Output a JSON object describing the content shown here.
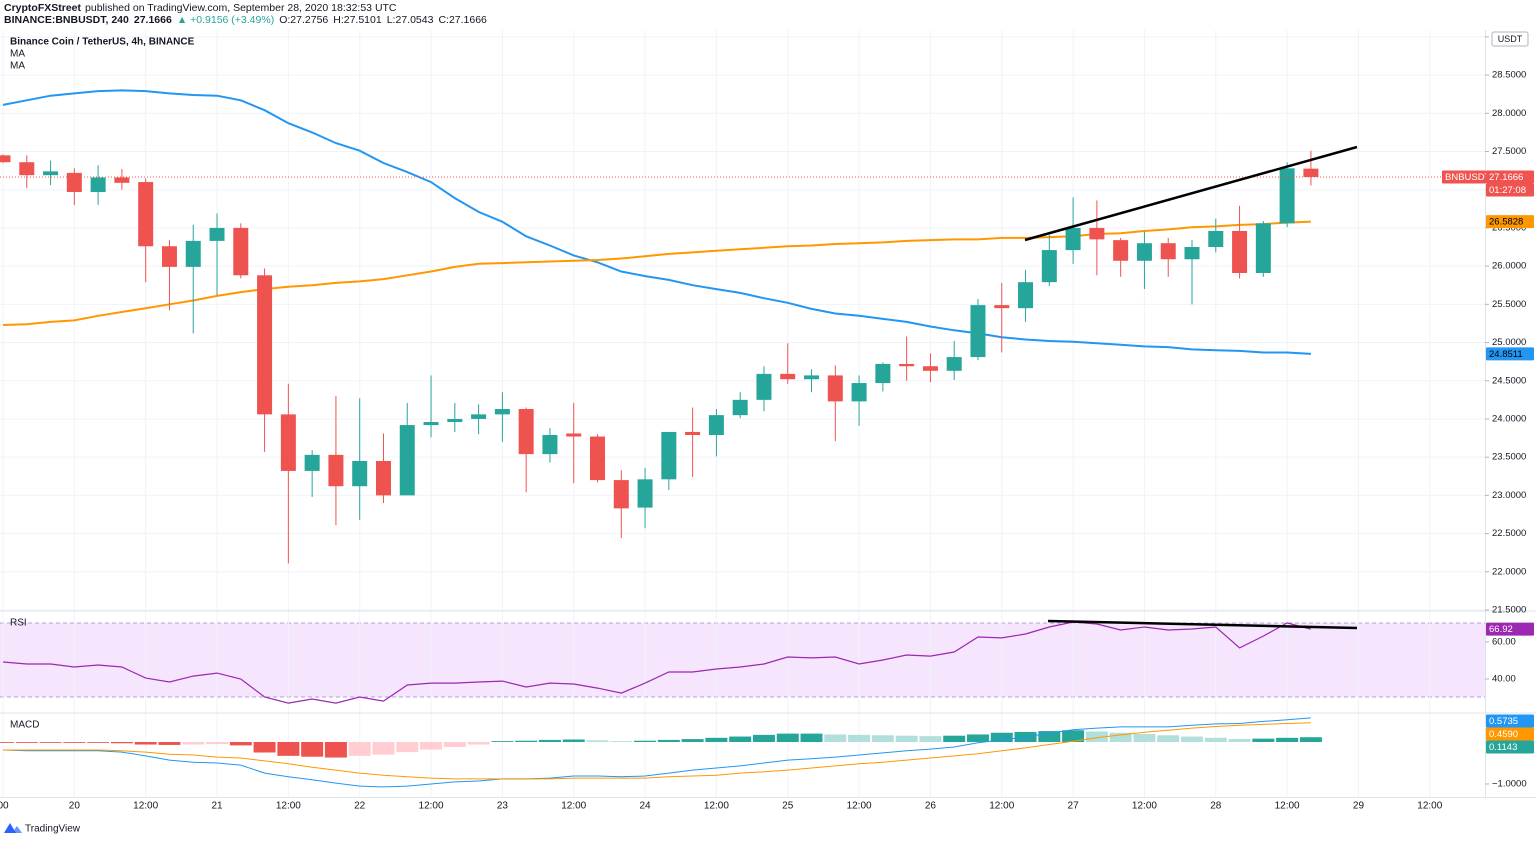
{
  "header": {
    "publisher": "CryptoFXStreet",
    "published": "published on TradingView.com, September 28, 2020 18:32:53 UTC",
    "symbol": "BINANCE:BNBUSDT, 240",
    "last": "27.1666",
    "change": "▲ +0.9156 (+3.49%)",
    "ohlc": [
      "O:27.2756",
      "H:27.5101",
      "L:27.0543",
      "C:27.1666"
    ]
  },
  "footer": {
    "brand": "TradingView"
  },
  "chart_data": [
    {
      "type": "candlestick",
      "title": "Binance Coin / TetherUS, 4h, BINANCE",
      "currency": "USDT",
      "last_price_label": "BNBUSDT",
      "countdown": "01:27:08",
      "up_color": "#26a69a",
      "down_color": "#ef5350",
      "categories": [
        "00",
        null,
        null,
        "20",
        null,
        null,
        "12:00",
        null,
        null,
        "21",
        null,
        null,
        "12:00",
        null,
        null,
        "22",
        null,
        null,
        "12:00",
        null,
        null,
        "23",
        null,
        null,
        "12:00",
        null,
        null,
        "24",
        null,
        null,
        "12:00",
        null,
        null,
        "25",
        null,
        null,
        "12:00",
        null,
        null,
        "26",
        null,
        null,
        "12:00",
        null,
        null,
        "27",
        null,
        null,
        "12:00",
        null,
        null,
        "28",
        null,
        null,
        "12:00",
        null,
        null,
        "29",
        null,
        null,
        "12:00"
      ],
      "open": [
        27.45,
        27.36,
        27.19,
        27.22,
        26.97,
        27.16,
        27.1,
        26.26,
        25.99,
        26.33,
        26.5,
        25.88,
        24.06,
        23.32,
        23.53,
        23.12,
        23.45,
        23.0,
        23.92,
        23.96,
        24.0,
        24.06,
        24.13,
        23.54,
        23.81,
        23.77,
        23.2,
        22.84,
        23.21,
        23.83,
        23.79,
        24.05,
        24.25,
        24.59,
        24.52,
        24.57,
        24.23,
        24.47,
        24.72,
        24.69,
        24.63,
        24.81,
        25.49,
        25.45,
        25.79,
        26.21,
        26.5,
        26.34,
        26.07,
        26.3,
        26.09,
        26.25,
        26.46,
        25.91,
        26.56,
        27.2756,
        null,
        null,
        null,
        null,
        null
      ],
      "high": [
        27.46,
        27.45,
        27.38,
        27.28,
        27.32,
        27.27,
        27.15,
        26.34,
        26.54,
        26.69,
        26.56,
        25.97,
        24.46,
        23.59,
        24.3,
        24.27,
        23.81,
        24.21,
        24.57,
        24.21,
        24.19,
        24.35,
        24.15,
        23.88,
        24.21,
        23.8,
        23.33,
        23.36,
        23.83,
        24.15,
        24.13,
        24.35,
        24.69,
        24.99,
        24.65,
        24.7,
        24.57,
        24.74,
        25.08,
        24.86,
        25.02,
        25.57,
        25.78,
        25.95,
        26.41,
        26.9,
        26.86,
        26.37,
        26.45,
        26.37,
        26.34,
        26.62,
        26.79,
        26.59,
        27.36,
        27.5101,
        null,
        null,
        null,
        null,
        null
      ],
      "low": [
        27.35,
        27.02,
        27.06,
        26.8,
        26.8,
        27.0,
        25.79,
        25.42,
        25.12,
        25.62,
        25.84,
        23.57,
        22.11,
        22.98,
        22.61,
        22.68,
        22.9,
        23.0,
        23.76,
        23.83,
        23.8,
        23.7,
        23.04,
        23.43,
        23.16,
        23.17,
        22.44,
        22.57,
        23.07,
        23.24,
        23.51,
        24.01,
        24.1,
        24.46,
        24.35,
        23.71,
        23.91,
        24.36,
        24.5,
        24.48,
        24.51,
        24.77,
        24.87,
        25.27,
        25.74,
        26.03,
        25.88,
        25.86,
        25.7,
        25.86,
        25.5,
        26.18,
        25.84,
        25.86,
        26.51,
        27.0543,
        null,
        null,
        null,
        null,
        null
      ],
      "close": [
        27.36,
        27.19,
        27.24,
        26.97,
        27.16,
        27.09,
        26.26,
        25.99,
        26.33,
        26.5,
        25.88,
        24.06,
        23.32,
        23.53,
        23.12,
        23.45,
        23.0,
        23.92,
        23.96,
        24.0,
        24.06,
        24.13,
        23.54,
        23.79,
        23.77,
        23.2,
        22.83,
        23.21,
        23.83,
        23.79,
        24.05,
        24.25,
        24.59,
        24.52,
        24.57,
        24.23,
        24.47,
        24.72,
        24.69,
        24.63,
        24.81,
        25.49,
        25.45,
        25.79,
        26.21,
        26.5,
        26.35,
        26.07,
        26.3,
        26.09,
        26.25,
        26.46,
        25.91,
        26.56,
        27.28,
        27.1666,
        null,
        null,
        null,
        null,
        null
      ],
      "series": [
        {
          "name": "MA",
          "color": "#2196f3",
          "values": [
            28.11,
            28.17,
            28.23,
            28.26,
            28.29,
            28.3,
            28.29,
            28.26,
            28.24,
            28.23,
            28.17,
            28.04,
            27.87,
            27.75,
            27.61,
            27.51,
            27.35,
            27.23,
            27.1,
            26.89,
            26.71,
            26.58,
            26.39,
            26.27,
            26.14,
            26.05,
            25.93,
            25.87,
            25.82,
            25.75,
            25.7,
            25.65,
            25.58,
            25.52,
            25.44,
            25.38,
            25.35,
            25.31,
            25.27,
            25.21,
            25.16,
            25.12,
            25.07,
            25.04,
            25.02,
            25.01,
            24.99,
            24.97,
            24.95,
            24.94,
            24.91,
            24.9,
            24.89,
            24.87,
            24.87,
            24.8511,
            null,
            null,
            null,
            null,
            null
          ]
        },
        {
          "name": "MA",
          "color": "#ff9800",
          "values": [
            25.23,
            25.24,
            25.27,
            25.29,
            25.35,
            25.4,
            25.45,
            25.5,
            25.55,
            25.61,
            25.66,
            25.7,
            25.73,
            25.75,
            25.78,
            25.8,
            25.83,
            25.88,
            25.93,
            25.99,
            26.03,
            26.04,
            26.05,
            26.06,
            26.07,
            26.08,
            26.1,
            26.13,
            26.16,
            26.18,
            26.2,
            26.22,
            26.24,
            26.26,
            26.27,
            26.29,
            26.3,
            26.31,
            26.33,
            26.34,
            26.35,
            26.35,
            26.37,
            26.37,
            26.38,
            26.39,
            26.42,
            26.43,
            26.46,
            26.48,
            26.51,
            26.52,
            26.54,
            26.55,
            26.57,
            26.5828,
            null,
            null,
            null,
            null,
            null
          ]
        }
      ],
      "ylim": [
        21.5,
        29.09
      ],
      "yticks": [
        {
          "value": 21.5,
          "label": "21.5000"
        },
        {
          "value": 22,
          "label": "22.0000"
        },
        {
          "value": 22.5,
          "label": "22.5000"
        },
        {
          "value": 23,
          "label": "23.0000"
        },
        {
          "value": 23.5,
          "label": "23.5000"
        },
        {
          "value": 24,
          "label": "24.0000"
        },
        {
          "value": 24.5,
          "label": "24.5000"
        },
        {
          "value": 25,
          "label": "25.0000"
        },
        {
          "value": 25.5,
          "label": "25.5000"
        },
        {
          "value": 26,
          "label": "26.0000"
        },
        {
          "value": 26.5,
          "label": "26.5000"
        },
        {
          "value": 27,
          "label": "27.0000"
        },
        {
          "value": 27.5,
          "label": "27.5000"
        },
        {
          "value": 28,
          "label": "28.0000"
        },
        {
          "value": 28.5,
          "label": "28.5000"
        },
        {
          "value": 29,
          "label": "29.0000"
        }
      ],
      "grid": true
    },
    {
      "type": "line",
      "title": "RSI",
      "series": [
        {
          "color": "#9c27b0",
          "values": [
            49.2,
            48.1,
            48.1,
            46.5,
            47.6,
            46.5,
            40.5,
            38.4,
            41.6,
            43.2,
            40.0,
            30.3,
            27.0,
            29.2,
            27.0,
            30.3,
            28.1,
            36.8,
            37.8,
            37.8,
            38.4,
            38.9,
            35.7,
            37.8,
            37.3,
            35.1,
            32.4,
            37.8,
            43.8,
            43.8,
            45.4,
            46.5,
            48.1,
            51.9,
            51.4,
            51.9,
            48.1,
            50.3,
            53.0,
            52.4,
            54.6,
            62.7,
            62.2,
            64.3,
            68.1,
            70.8,
            69.7,
            66.5,
            68.1,
            66.5,
            67.0,
            68.1,
            56.8,
            63.2,
            70.3,
            66.92,
            null,
            null,
            null,
            null,
            null
          ]
        }
      ],
      "ylim": [
        22.2,
        76.2
      ],
      "yticks": [
        {
          "value": 40,
          "label": "40.00"
        },
        {
          "value": 60,
          "label": "60.00"
        }
      ]
    },
    {
      "type": "macd",
      "title": "MACD",
      "hist_colors": {
        "up_strong": "#26a69a",
        "up_weak": "#b2dfdb",
        "down_strong": "#ef5350",
        "down_weak": "#ffcdd2"
      },
      "histogram": [
        -0.02,
        -0.02,
        -0.02,
        -0.02,
        -0.02,
        -0.03,
        -0.06,
        -0.07,
        -0.06,
        -0.05,
        -0.08,
        -0.25,
        -0.33,
        -0.35,
        -0.37,
        -0.33,
        -0.3,
        -0.24,
        -0.18,
        -0.12,
        -0.06,
        0.02,
        0.03,
        0.05,
        0.06,
        0.04,
        0.02,
        0.03,
        0.05,
        0.07,
        0.1,
        0.13,
        0.17,
        0.2,
        0.2,
        0.18,
        0.17,
        0.16,
        0.15,
        0.14,
        0.15,
        0.18,
        0.22,
        0.24,
        0.26,
        0.28,
        0.25,
        0.22,
        0.19,
        0.16,
        0.13,
        0.1,
        0.07,
        0.08,
        0.1,
        0.1143,
        null,
        null,
        null,
        null,
        null
      ],
      "series": [
        {
          "color": "#2196f3",
          "values": [
            -0.19,
            -0.21,
            -0.21,
            -0.21,
            -0.21,
            -0.24,
            -0.33,
            -0.43,
            -0.48,
            -0.5,
            -0.55,
            -0.74,
            -0.83,
            -0.9,
            -0.98,
            -1.05,
            -1.07,
            -1.05,
            -1.0,
            -0.95,
            -0.93,
            -0.88,
            -0.88,
            -0.86,
            -0.81,
            -0.81,
            -0.83,
            -0.81,
            -0.74,
            -0.67,
            -0.62,
            -0.57,
            -0.5,
            -0.43,
            -0.4,
            -0.36,
            -0.31,
            -0.26,
            -0.21,
            -0.17,
            -0.12,
            -0.02,
            0.05,
            0.12,
            0.21,
            0.29,
            0.33,
            0.36,
            0.36,
            0.36,
            0.4,
            0.43,
            0.44,
            0.49,
            0.53,
            0.5735,
            null,
            null,
            null,
            null,
            null
          ]
        },
        {
          "color": "#ff9800",
          "values": [
            -0.19,
            -0.19,
            -0.19,
            -0.19,
            -0.19,
            -0.21,
            -0.24,
            -0.29,
            -0.31,
            -0.36,
            -0.38,
            -0.45,
            -0.52,
            -0.6,
            -0.67,
            -0.74,
            -0.79,
            -0.83,
            -0.86,
            -0.88,
            -0.88,
            -0.88,
            -0.88,
            -0.88,
            -0.86,
            -0.86,
            -0.86,
            -0.86,
            -0.83,
            -0.81,
            -0.79,
            -0.74,
            -0.71,
            -0.67,
            -0.62,
            -0.57,
            -0.52,
            -0.48,
            -0.43,
            -0.38,
            -0.33,
            -0.28,
            -0.21,
            -0.14,
            -0.06,
            0.02,
            0.1,
            0.17,
            0.23,
            0.28,
            0.33,
            0.37,
            0.4,
            0.42,
            0.44,
            0.459,
            null,
            null,
            null,
            null,
            null
          ],
          "value_labels": [
            null,
            null,
            null,
            null,
            null,
            null,
            null,
            null,
            null,
            null,
            null,
            null,
            null,
            null,
            null,
            null,
            null,
            null,
            null,
            null,
            null,
            null,
            null,
            null,
            null,
            null,
            null,
            null,
            null,
            null,
            null,
            null,
            null,
            null,
            null,
            null,
            null,
            null,
            null,
            null,
            null,
            null,
            null,
            null,
            null,
            null,
            null,
            null,
            null,
            null,
            null,
            null,
            null,
            null,
            null,
            "0.4590",
            null,
            null,
            null,
            null,
            null
          ]
        }
      ],
      "ylim": [
        -1.31,
        0.667
      ],
      "yticks": [
        {
          "value": -1,
          "label": "−1.0000"
        }
      ]
    }
  ]
}
